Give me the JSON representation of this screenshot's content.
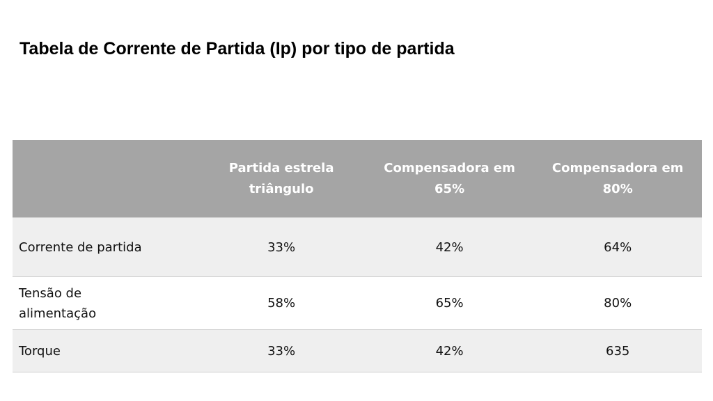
{
  "title": "Tabela de Corrente de Partida (Ip) por tipo de partida",
  "table": {
    "headers": [
      "",
      "Partida estrela triângulo",
      "Compensadora em 65%",
      "Compensadora em 80%"
    ],
    "rows": [
      {
        "label": "Corrente de partida",
        "values": [
          "33%",
          "42%",
          "64%"
        ]
      },
      {
        "label": "Tensão de alimentação",
        "values": [
          "58%",
          "65%",
          "80%"
        ]
      },
      {
        "label": "Torque",
        "values": [
          "33%",
          "42%",
          "635"
        ]
      }
    ]
  },
  "colors": {
    "header_bg": "#a5a5a5",
    "row_alt_bg": "#efefef"
  }
}
